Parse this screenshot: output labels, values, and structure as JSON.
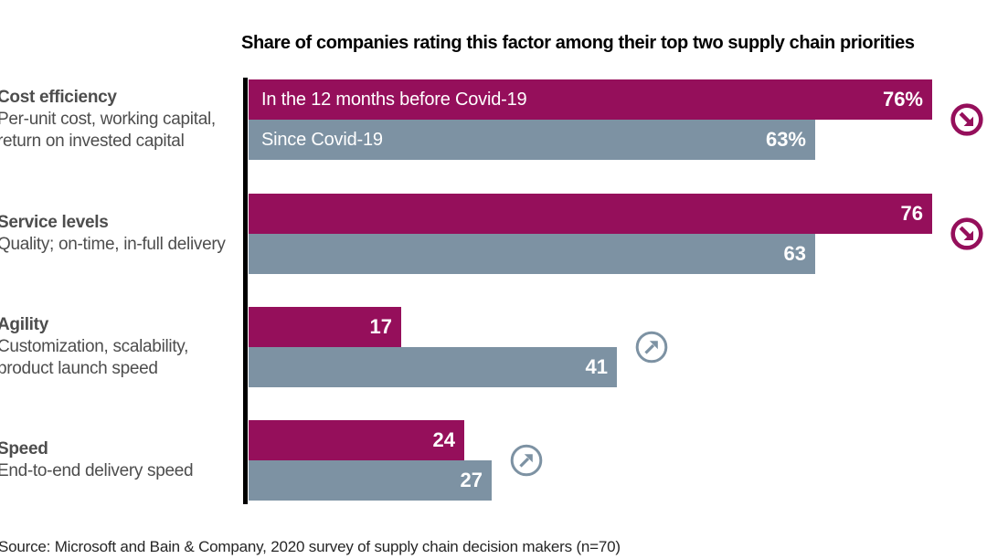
{
  "title": "Share of companies rating this factor among their top two supply chain priorities",
  "source": "Source: Microsoft and Bain & Company, 2020 survey of supply chain decision makers (n=70)",
  "legend": {
    "before": "In the 12 months before Covid-19",
    "since": "Since Covid-19"
  },
  "colors": {
    "before": "#950F5B",
    "since": "#7D92A3",
    "category_text": "#4D4D4D",
    "axis": "#000000",
    "value_text": "#FFFFFF"
  },
  "icons": {
    "down": "arrow-down-right-circle-icon",
    "up": "arrow-up-right-circle-icon"
  },
  "chart_data": {
    "type": "bar",
    "orientation": "horizontal",
    "title": "Share of companies rating this factor among their top two supply chain priorities",
    "unit": "% of companies",
    "xlim": [
      0,
      80
    ],
    "grid": false,
    "legend_position": "inside-first-bars",
    "series_names": [
      "In the 12 months before Covid-19",
      "Since Covid-19"
    ],
    "groups": [
      {
        "name": "Cost efficiency",
        "desc": [
          "Per-unit cost, working capital,",
          "return on invested capital"
        ],
        "before": 76,
        "since": 63,
        "before_label": "76%",
        "since_label": "63%",
        "trend": "down"
      },
      {
        "name": "Service levels",
        "desc": [
          "Quality; on-time, in-full delivery"
        ],
        "before": 76,
        "since": 63,
        "before_label": "76",
        "since_label": "63",
        "trend": "down"
      },
      {
        "name": "Agility",
        "desc": [
          "Customization, scalability,",
          "product launch speed"
        ],
        "before": 17,
        "since": 41,
        "before_label": "17",
        "since_label": "41",
        "trend": "up"
      },
      {
        "name": "Speed",
        "desc": [
          "End-to-end delivery speed"
        ],
        "before": 24,
        "since": 27,
        "before_label": "24",
        "since_label": "27",
        "trend": "up"
      }
    ]
  }
}
